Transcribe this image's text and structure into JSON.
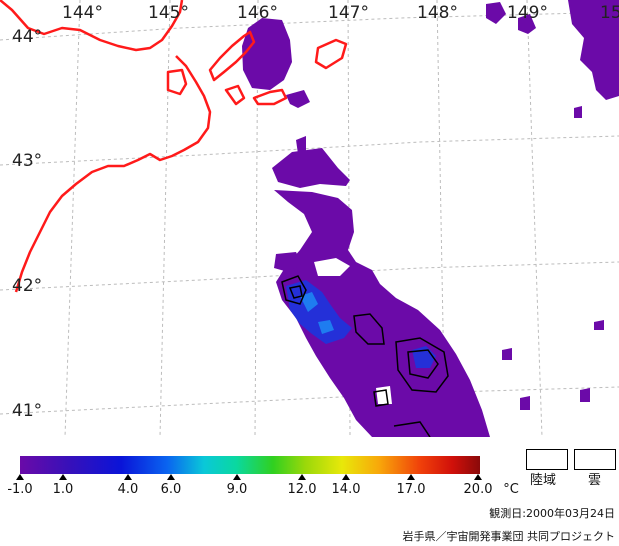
{
  "map": {
    "lon_labels": [
      "144°",
      "145°",
      "146°",
      "147°",
      "148°",
      "149°",
      "15"
    ],
    "lat_labels": [
      "44°",
      "43°",
      "42°",
      "41°"
    ],
    "colors": {
      "coast": "#ff1a1a",
      "grid": "#bcbcbc",
      "sst_base": "#6b0aa8",
      "contour": "#000000"
    }
  },
  "legend": {
    "ticks": [
      "-1.0",
      "1.0",
      "4.0",
      "6.0",
      "9.0",
      "12.0",
      "14.0",
      "17.0",
      "20.0"
    ],
    "unit": "°C",
    "land_label": "陸域",
    "cloud_label": "雲"
  },
  "footer": {
    "observation_date": "観測日:2000年03月24日",
    "credit": "岩手県／宇宙開発事業団 共同プロジェクト"
  }
}
